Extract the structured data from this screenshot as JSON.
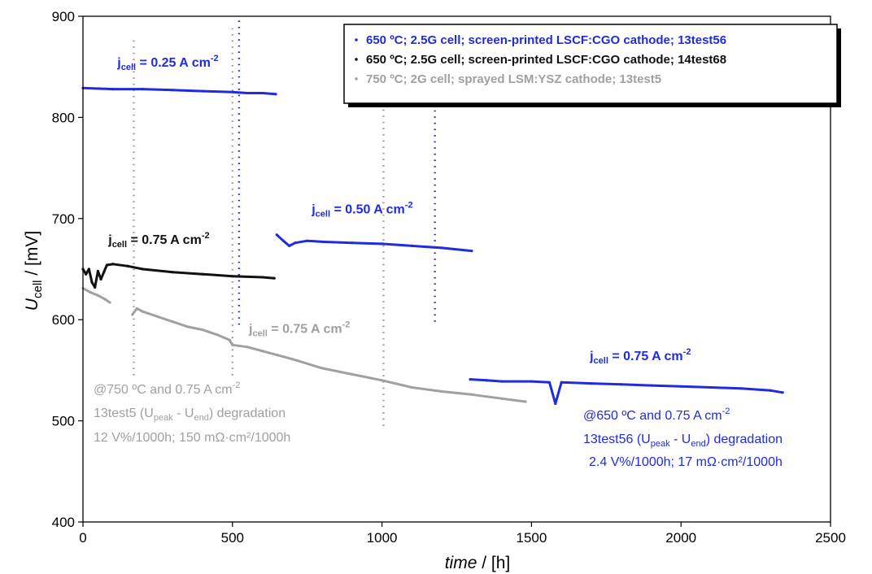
{
  "chart_data": {
    "type": "scatter",
    "xlabel_main": "time",
    "xlabel_unit": " / [h]",
    "ylabel_main": "U",
    "ylabel_sub": "cell",
    "ylabel_unit": " / [mV]",
    "xlim": [
      0,
      2500
    ],
    "ylim": [
      400,
      900
    ],
    "x_ticks": [
      0,
      500,
      1000,
      1500,
      2000,
      2500
    ],
    "y_ticks": [
      400,
      500,
      600,
      700,
      800,
      900
    ],
    "grid": false,
    "legend_placement": "top-right",
    "colors": {
      "blue": "#1f2be0",
      "black": "#111111",
      "gray": "#a0a0a0",
      "marker_gray": "#9a9a9a"
    },
    "legend": [
      {
        "text": "650 ºC; 2.5G cell; screen-printed LSCF:CGO cathode; 13test56",
        "color": "#1f2be0"
      },
      {
        "text": "650 ºC; 2.5G cell; screen-printed LSCF:CGO cathode; 14test68",
        "color": "#111111"
      },
      {
        "text": "750 ºC; 2G cell; sprayed LSM:YSZ cathode; 13test5",
        "color": "#a0a0a0"
      }
    ],
    "series": [
      {
        "name": "650 ºC; 2.5G cell; screen-printed LSCF:CGO cathode; 13test56",
        "color": "#1f2be0",
        "segments": [
          {
            "x": [
              0,
              100,
              200,
              300,
              400,
              500,
              550,
              600,
              645
            ],
            "y": [
              829,
              828,
              828,
              827,
              826,
              825,
              824,
              824,
              823
            ]
          },
          {
            "x": [
              648,
              670,
              690,
              710,
              750,
              800,
              900,
              1000,
              1100,
              1200,
              1300
            ],
            "y": [
              684,
              678,
              673,
              676,
              678,
              677,
              676,
              675,
              673,
              671,
              668
            ]
          },
          {
            "x": [
              1295,
              1350,
              1400,
              1500,
              1560,
              1580,
              1600,
              1700,
              1800,
              1900,
              2000,
              2100,
              2200,
              2300,
              2340
            ],
            "y": [
              541,
              540,
              539,
              539,
              538,
              517,
              538,
              537,
              536,
              535,
              534,
              533,
              532,
              530,
              528
            ]
          }
        ],
        "spikes": [
          {
            "x": 522,
            "y_from": 595,
            "y_to": 900
          },
          {
            "x": 1177,
            "y_from": 598,
            "y_to": 820
          }
        ]
      },
      {
        "name": "650 ºC; 2.5G cell; screen-printed LSCF:CGO cathode; 14test68",
        "color": "#111111",
        "segments": [
          {
            "x": [
              0,
              10,
              20,
              30,
              40,
              50,
              60,
              70,
              80,
              100,
              150,
              200,
              300,
              400,
              500,
              600,
              640
            ],
            "y": [
              650,
              645,
              650,
              637,
              632,
              648,
              640,
              647,
              654,
              655,
              653,
              650,
              647,
              645,
              643,
              642,
              641
            ]
          }
        ]
      },
      {
        "name": "750 ºC; 2G cell; sprayed LSM:YSZ cathode; 13test5",
        "color": "#a0a0a0",
        "segments": [
          {
            "x": [
              0,
              25,
              50,
              75,
              90
            ],
            "y": [
              631,
              627,
              624,
              620,
              617
            ]
          },
          {
            "x": [
              165,
              180,
              200,
              250,
              300,
              350,
              400,
              450,
              490,
              500,
              550,
              600,
              650,
              700,
              800,
              900,
              1000,
              1100,
              1200,
              1300,
              1400,
              1480
            ],
            "y": [
              605,
              611,
              608,
              603,
              598,
              593,
              590,
              585,
              580,
              575,
              573,
              569,
              565,
              561,
              552,
              546,
              540,
              533,
              529,
              526,
              522,
              519
            ]
          }
        ],
        "dotted_verticals": [
          {
            "x": 170,
            "y_from": 545,
            "y_to": 880
          },
          {
            "x": 500,
            "y_from": 545,
            "y_to": 888
          },
          {
            "x": 1005,
            "y_from": 495,
            "y_to": 880
          }
        ]
      }
    ],
    "annotations": [
      {
        "main": "j",
        "sub": "cell",
        "rest": " = 0.25 A cm",
        "sup": "-2",
        "color": "#1f2be0",
        "x": 115,
        "y": 850
      },
      {
        "main": "j",
        "sub": "cell",
        "rest": " = 0.50 A cm",
        "sup": "-2",
        "color": "#1f2be0",
        "x": 765,
        "y": 705
      },
      {
        "main": "j",
        "sub": "cell",
        "rest": " = 0.75 A cm",
        "sup": "-2",
        "color": "#111111",
        "x": 85,
        "y": 675
      },
      {
        "main": "j",
        "sub": "cell",
        "rest": " = 0.75 A cm",
        "sup": "-2",
        "color": "#a0a0a0",
        "x": 555,
        "y": 587
      },
      {
        "main": "j",
        "sub": "cell",
        "rest": " = 0.75 A cm",
        "sup": "-2",
        "color": "#1f2be0",
        "x": 1695,
        "y": 560
      }
    ],
    "notes": {
      "gray_line1_a": "@750 ºC and 0.75 A cm",
      "gray_line1_sup": "-2",
      "gray_line2_a": "13test5 (U",
      "gray_line2_sub1": "peak",
      "gray_line2_b": " - U",
      "gray_line2_sub2": "end",
      "gray_line2_c": ") degradation",
      "gray_line3": "12 V%/1000h; 150 mΩ·cm²/1000h",
      "blue_line1_a": "@650 ºC and 0.75 A cm",
      "blue_line1_sup": "-2",
      "blue_line2_a": "13test56 (U",
      "blue_line2_sub1": "peak",
      "blue_line2_b": " - U",
      "blue_line2_sub2": "end",
      "blue_line2_c": ") degradation",
      "blue_line3": "2.4 V%/1000h; 17 mΩ·cm²/1000h"
    }
  }
}
